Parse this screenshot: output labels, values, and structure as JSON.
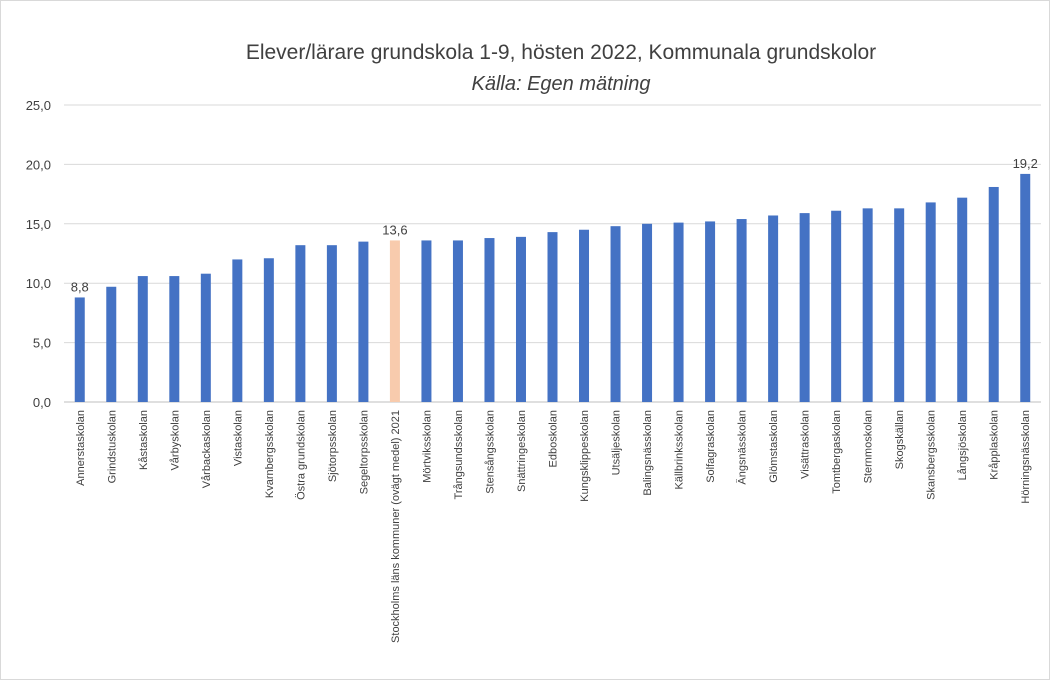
{
  "chart_data": {
    "type": "bar",
    "title": "Elever/lärare grundskola 1-9, hösten 2022, Kommunala grundskolor",
    "subtitle": "Källa: Egen mätning",
    "xlabel": "",
    "ylabel": "",
    "ylim": [
      0,
      25
    ],
    "yticks": [
      0,
      5,
      10,
      15,
      20,
      25
    ],
    "ytick_labels": [
      "0,0",
      "5,0",
      "10,0",
      "15,0",
      "20,0",
      "25,0"
    ],
    "grid": true,
    "legend": "none",
    "categories": [
      "Annerstaskolan",
      "Grindstuskolan",
      "Kåstaskolan",
      "Vårbyskolan",
      "Vårbackaskolan",
      "Vistaskolan",
      "Kvarnbergsskolan",
      "Östra grundskolan",
      "Sjötorpsskolan",
      "Segeltorpsskolan",
      "Stockholms läns kommuner (ovägt medel) 2021",
      "Mörtviksskolan",
      "Trångsundsskolan",
      "Stensångsskolan",
      "Snättringeskolan",
      "Edboskolan",
      "Kungsklippeskolan",
      "Utsäljeskolan",
      "Balingsnässkolan",
      "Källbrinksskolan",
      "Solfagraskolan",
      "Ängsnässkolan",
      "Glömstaskolan",
      "Visättraskolan",
      "Tomtbergaskolan",
      "Sternmoskolan",
      "Skogskällan",
      "Skansbergsskolan",
      "Långsjöskolan",
      "Kråpplaskolan",
      "Hörningsnässkolan"
    ],
    "values": [
      8.8,
      9.7,
      10.6,
      10.6,
      10.8,
      12.0,
      12.1,
      13.2,
      13.2,
      13.5,
      13.6,
      13.6,
      13.6,
      13.8,
      13.9,
      14.3,
      14.5,
      14.8,
      15.0,
      15.1,
      15.2,
      15.4,
      15.7,
      15.9,
      16.1,
      16.3,
      16.3,
      16.8,
      17.2,
      18.1,
      19.2
    ],
    "data_labels": [
      {
        "index": 0,
        "text": "8,8"
      },
      {
        "index": 10,
        "text": "13,6"
      },
      {
        "index": 30,
        "text": "19,2"
      }
    ],
    "colors": {
      "bar": "#4472c4",
      "highlight": "#f8cbad",
      "highlight_index": 10
    }
  }
}
